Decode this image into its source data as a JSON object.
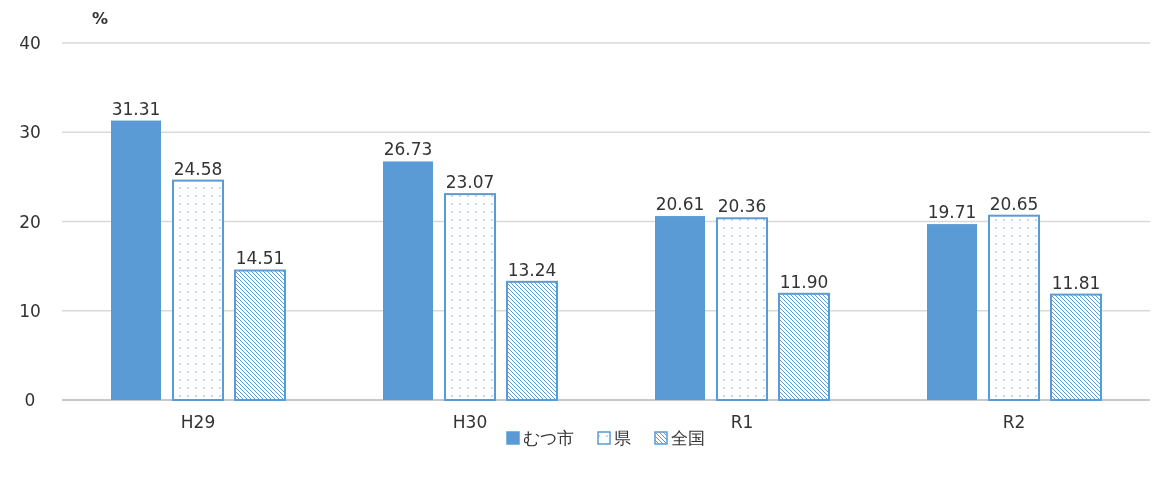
{
  "chart_data": {
    "type": "bar",
    "ylabel": "%",
    "categories": [
      "H29",
      "H30",
      "R1",
      "R2"
    ],
    "series": [
      {
        "name": "むつ市",
        "color": "#5b9bd5",
        "values": [
          31.31,
          26.73,
          20.61,
          19.71
        ]
      },
      {
        "name": "県",
        "color": "#5b9bd5",
        "values": [
          24.58,
          23.07,
          20.36,
          20.65
        ]
      },
      {
        "name": "全国",
        "color": "#5b9bd5",
        "values": [
          14.51,
          13.24,
          11.9,
          11.81
        ],
        "value_labels": [
          "14.51",
          "13.24",
          "11.90",
          "11.81"
        ]
      }
    ],
    "ylim": [
      0,
      40
    ],
    "yticks": [
      0,
      10,
      20,
      30,
      40
    ],
    "grid": "y",
    "legend": "bottom",
    "data_labels": true
  }
}
